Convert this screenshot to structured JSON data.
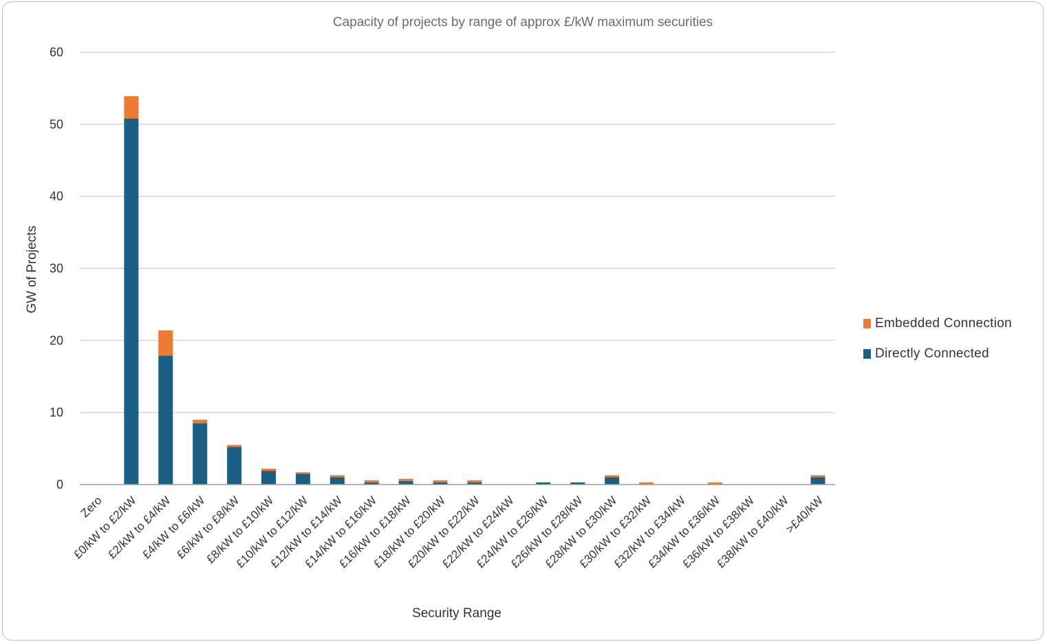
{
  "chart_data": {
    "type": "bar",
    "stacked": true,
    "title": "Capacity of projects by range of approx £/kW maximum securities",
    "xlabel": "Security Range",
    "ylabel": "GW of Projects",
    "ylim": [
      0,
      60
    ],
    "yticks": [
      0,
      10,
      20,
      30,
      40,
      50,
      60
    ],
    "grid": true,
    "legend_position": "right",
    "categories": [
      "Zero",
      "£0/kW to £2/kW",
      "£2/kW to £4/kW",
      "£4/kW to £6/kW",
      "£6/kW to £8/kW",
      "£8/kW to £10/kW",
      "£10/kW to £12/kW",
      "£12/kW to £14/kW",
      "£14/kW to £16/kW",
      "£16/kW to £18/kW",
      "£18/kW to £20/kW",
      "£20/kW to £22/kW",
      "£22/kW to £24/kW",
      "£24/kW to £26/kW",
      "£26/kW to £28/kW",
      "£28/kW to £30/kW",
      "£30/kW to £32/kW",
      "£32/kW to £34/kW",
      "£34/kW to £36/kW",
      "£36/kW to £38/kW",
      "£38/kW to £40/kW",
      ">£40/kW"
    ],
    "series": [
      {
        "name": "Directly Connected",
        "color": "#1b5f84",
        "values": [
          0,
          50.8,
          17.9,
          8.5,
          5.2,
          1.9,
          1.5,
          1.0,
          0.3,
          0.5,
          0.3,
          0.3,
          0,
          0.3,
          0.3,
          1.0,
          0,
          0,
          0,
          0,
          0,
          1.0
        ]
      },
      {
        "name": "Embedded Connection",
        "color": "#ec7a32",
        "values": [
          0,
          3.1,
          3.5,
          0.5,
          0.3,
          0.3,
          0.2,
          0.3,
          0.3,
          0.3,
          0.3,
          0.3,
          0,
          0,
          0,
          0.3,
          0.3,
          0,
          0.3,
          0,
          0,
          0.3
        ]
      }
    ],
    "legend": [
      "Embedded Connection",
      "Directly Connected"
    ]
  }
}
